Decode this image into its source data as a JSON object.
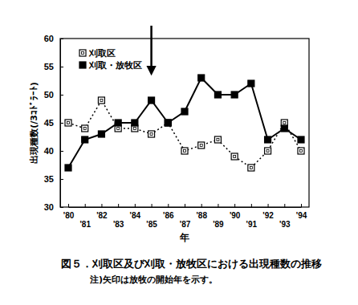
{
  "chart_data": {
    "type": "line",
    "title": "図５．刈取区及び刈取・放牧区における出現種数の推移",
    "annotations": [
      "注)矢印は放牧の開始年を示す。"
    ],
    "arrow": "'85",
    "x_label": "年",
    "y_label": "出現種数(/3ｺﾄﾞﾗｰﾄ)",
    "categories": [
      "'80",
      "'81",
      "'82",
      "'83",
      "'84",
      "'85",
      "'86",
      "'87",
      "'88",
      "'89",
      "'90",
      "'91",
      "'92",
      "'93",
      "'94"
    ],
    "series": [
      {
        "name": "刈取区",
        "color": "#000000",
        "marker": "square-open",
        "line_style": "dotted",
        "values": [
          45,
          44,
          49,
          44,
          44,
          43,
          45,
          40,
          41,
          42,
          39,
          37,
          40,
          45,
          40
        ]
      },
      {
        "name": "刈取・放牧区",
        "color": "#000000",
        "marker": "square",
        "line_style": "solid",
        "values": [
          37,
          42,
          43,
          45,
          45,
          49,
          45,
          47,
          53,
          50,
          50,
          52,
          42,
          44,
          42
        ]
      }
    ],
    "ylim": [
      30,
      60
    ],
    "yticks": [
      30,
      35,
      40,
      45,
      50,
      55,
      60
    ],
    "grid": false,
    "legend": "top-left"
  }
}
